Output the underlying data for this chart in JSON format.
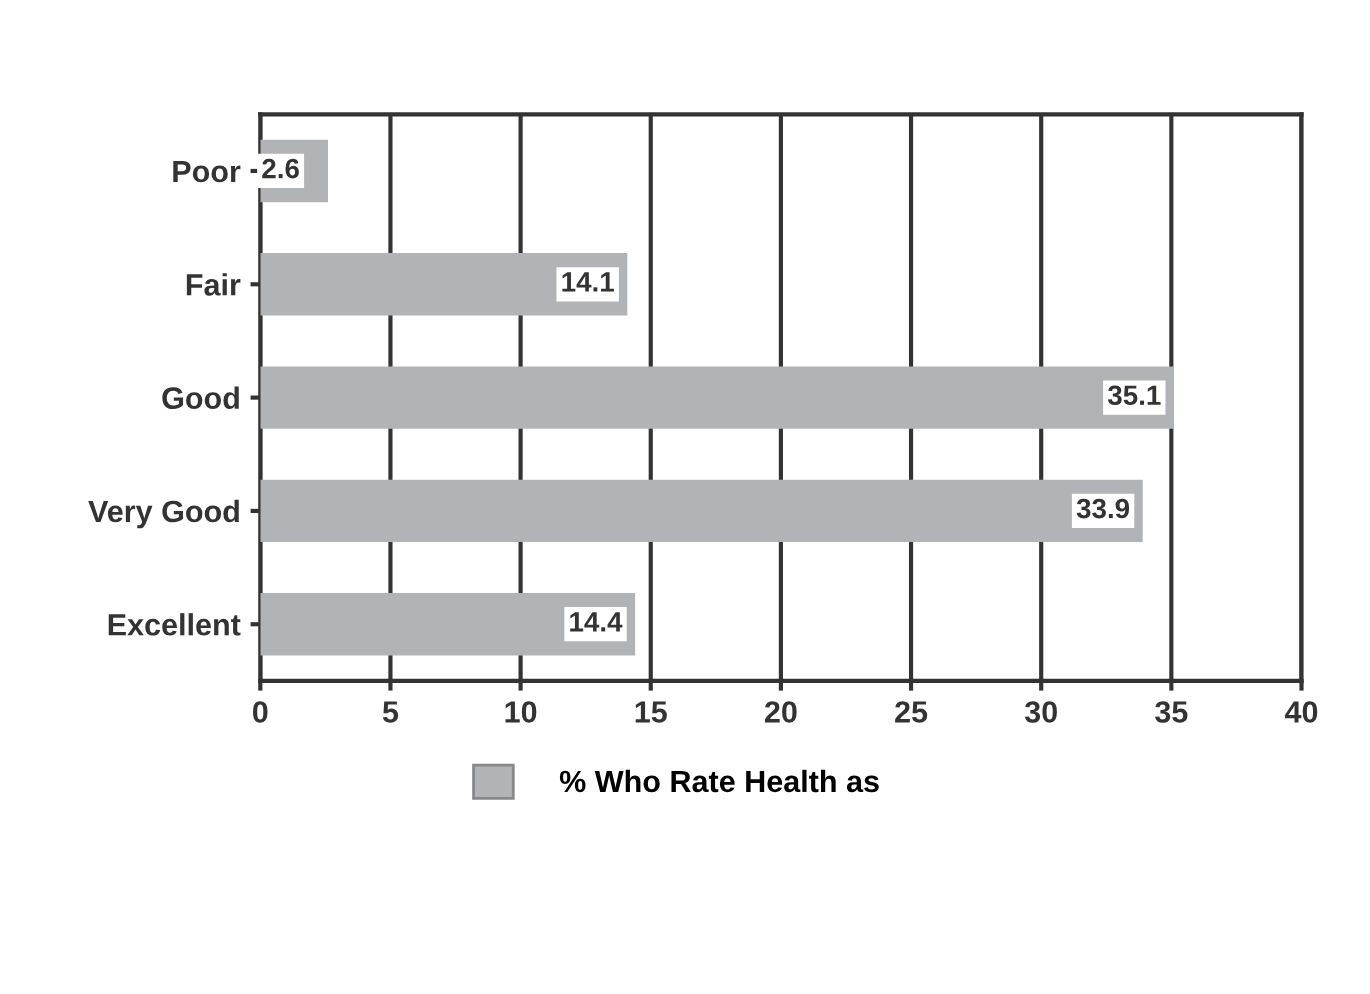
{
  "chart_data": {
    "type": "bar",
    "orientation": "horizontal",
    "categories": [
      "Poor",
      "Fair",
      "Good",
      "Very Good",
      "Excellent"
    ],
    "series": [
      {
        "name": "% Who Rate Health as",
        "color": "#b2b3b7",
        "values": [
          2.6,
          14.1,
          35.1,
          33.9,
          14.4
        ]
      }
    ],
    "xlim": [
      0,
      40
    ],
    "xticks": [
      0,
      5,
      10,
      15,
      20,
      25,
      30,
      35,
      40
    ],
    "grid": "x",
    "legend": "bottom",
    "data_labels": true
  }
}
